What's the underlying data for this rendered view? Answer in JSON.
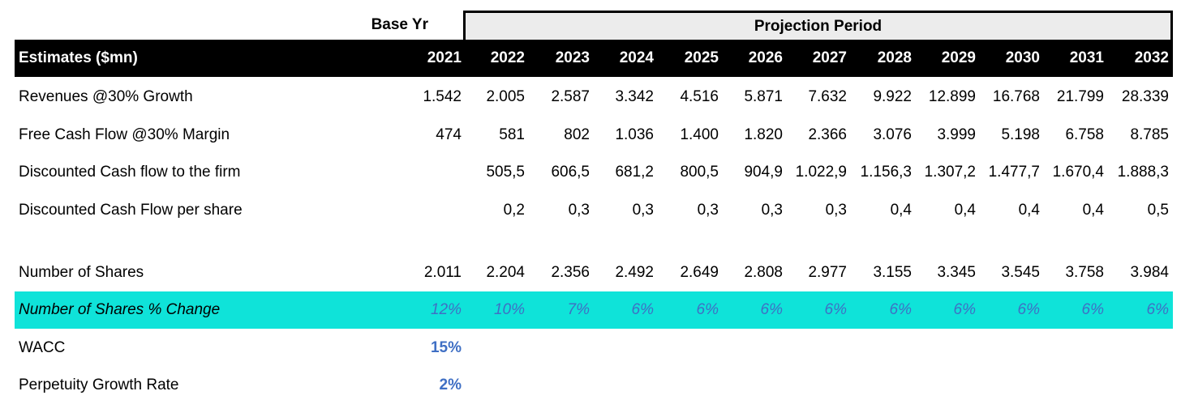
{
  "header": {
    "base_yr": "Base Yr",
    "projection_period": "Projection Period",
    "estimates_label": "Estimates ($mn)",
    "years": [
      "2021",
      "2022",
      "2023",
      "2024",
      "2025",
      "2026",
      "2027",
      "2028",
      "2029",
      "2030",
      "2031",
      "2032"
    ]
  },
  "rows": {
    "revenues": {
      "label": "Revenues @30% Growth",
      "values": [
        "1.542",
        "2.005",
        "2.587",
        "3.342",
        "4.516",
        "5.871",
        "7.632",
        "9.922",
        "12.899",
        "16.768",
        "21.799",
        "28.339"
      ]
    },
    "fcf": {
      "label": "Free Cash Flow @30% Margin",
      "values": [
        "474",
        "581",
        "802",
        "1.036",
        "1.400",
        "1.820",
        "2.366",
        "3.076",
        "3.999",
        "5.198",
        "6.758",
        "8.785"
      ]
    },
    "dcf_firm": {
      "label": "Discounted Cash flow to the firm",
      "values": [
        "",
        "505,5",
        "606,5",
        "681,2",
        "800,5",
        "904,9",
        "1.022,9",
        "1.156,3",
        "1.307,2",
        "1.477,7",
        "1.670,4",
        "1.888,3"
      ]
    },
    "dcf_share": {
      "label": "Discounted Cash Flow per share",
      "values": [
        "",
        "0,2",
        "0,3",
        "0,3",
        "0,3",
        "0,3",
        "0,3",
        "0,4",
        "0,4",
        "0,4",
        "0,4",
        "0,5"
      ]
    },
    "shares": {
      "label": "Number of Shares",
      "values": [
        "2.011",
        "2.204",
        "2.356",
        "2.492",
        "2.649",
        "2.808",
        "2.977",
        "3.155",
        "3.345",
        "3.545",
        "3.758",
        "3.984"
      ]
    },
    "shares_change": {
      "label": "Number of Shares % Change",
      "values": [
        "12%",
        "10%",
        "7%",
        "6%",
        "6%",
        "6%",
        "6%",
        "6%",
        "6%",
        "6%",
        "6%",
        "6%"
      ]
    },
    "wacc": {
      "label": "WACC",
      "value": "15%"
    },
    "perpetuity": {
      "label": "Perpetuity Growth Rate",
      "value": "2%"
    }
  },
  "colors": {
    "highlight_bg": "#0fe3d9",
    "accent_blue": "#3f6fc4",
    "header_bg": "#000000"
  }
}
